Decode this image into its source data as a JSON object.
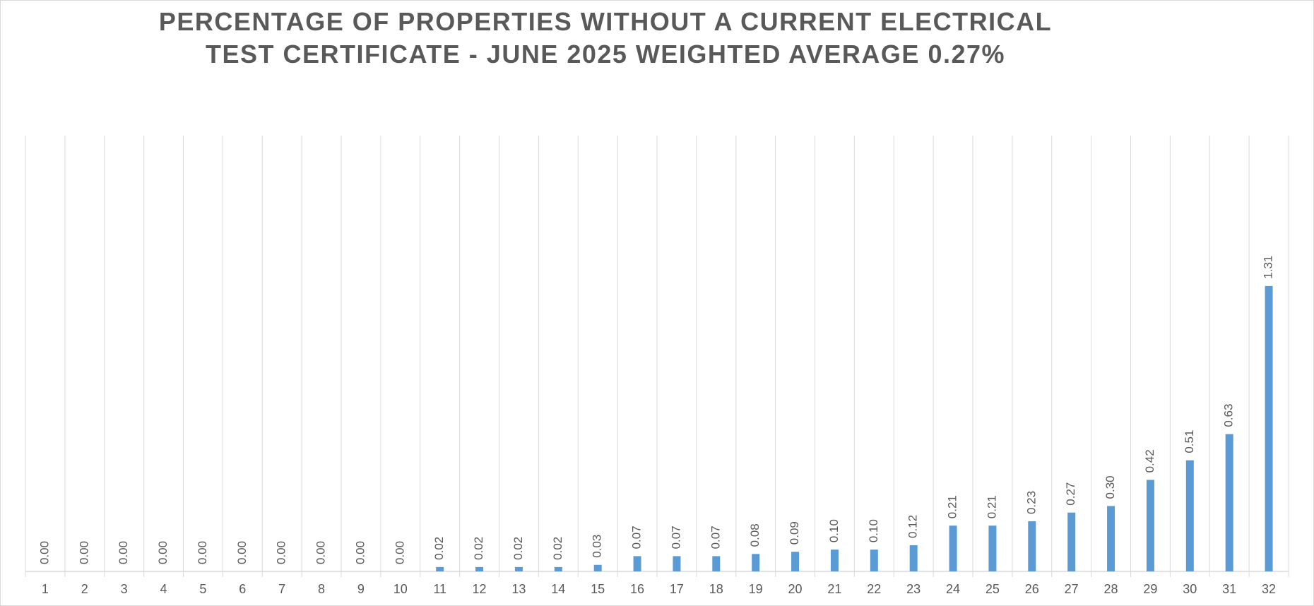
{
  "chart_data": {
    "type": "bar",
    "title": "PERCENTAGE OF PROPERTIES WITHOUT A CURRENT ELECTRICAL TEST CERTIFICATE - JUNE 2025 WEIGHTED AVERAGE 0.27%",
    "categories": [
      "1",
      "2",
      "3",
      "4",
      "5",
      "6",
      "7",
      "8",
      "9",
      "10",
      "11",
      "12",
      "13",
      "14",
      "15",
      "16",
      "17",
      "18",
      "19",
      "20",
      "21",
      "22",
      "23",
      "24",
      "25",
      "26",
      "27",
      "28",
      "29",
      "30",
      "31",
      "32"
    ],
    "values": [
      0,
      0,
      0,
      0,
      0,
      0,
      0,
      0,
      0,
      0,
      0.02,
      0.02,
      0.02,
      0.02,
      0.03,
      0.07,
      0.07,
      0.07,
      0.08,
      0.09,
      0.1,
      0.1,
      0.12,
      0.21,
      0.21,
      0.23,
      0.27,
      0.3,
      0.42,
      0.51,
      0.63,
      1.31
    ],
    "value_labels": [
      "0.00",
      "0.00",
      "0.00",
      "0.00",
      "0.00",
      "0.00",
      "0.00",
      "0.00",
      "0.00",
      "0.00",
      "0.02",
      "0.02",
      "0.02",
      "0.02",
      "0.03",
      "0.07",
      "0.07",
      "0.07",
      "0.08",
      "0.09",
      "0.10",
      "0.10",
      "0.12",
      "0.21",
      "0.21",
      "0.23",
      "0.27",
      "0.30",
      "0.42",
      "0.51",
      "0.63",
      "1.31"
    ],
    "color": "#5b9bd5",
    "ylim": [
      0,
      2
    ]
  }
}
